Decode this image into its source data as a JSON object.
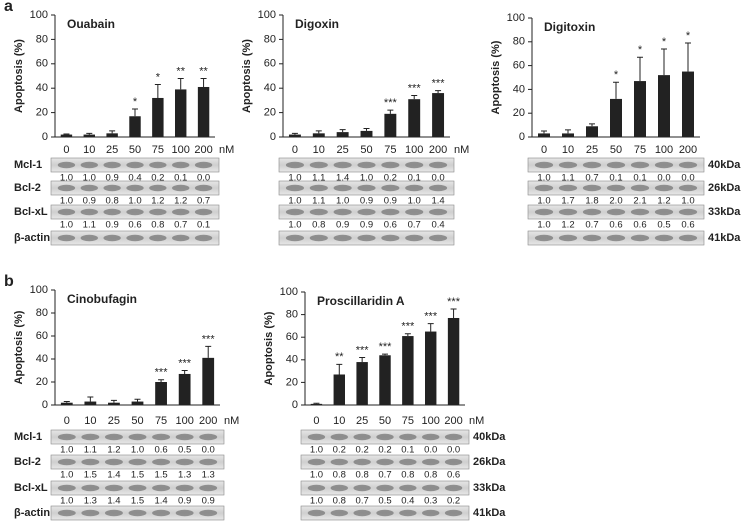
{
  "chart_data": [
    {
      "type": "bar",
      "panel": "a",
      "title": "Ouabain",
      "ylabel": "Apoptosis (%)",
      "xunit": "nM",
      "categories": [
        "0",
        "10",
        "25",
        "50",
        "75",
        "100",
        "200"
      ],
      "values": [
        2,
        2,
        3,
        17,
        32,
        39,
        41
      ],
      "errors": [
        0.5,
        1,
        2,
        6,
        11,
        9,
        7
      ],
      "annotations": [
        null,
        null,
        null,
        "*",
        "*",
        "**",
        "**"
      ],
      "ylim": [
        0,
        100
      ],
      "yticks": [
        0,
        20,
        40,
        60,
        80,
        100
      ],
      "color": "#222222",
      "blot_label_side": "left",
      "blots": [
        {
          "label": "Mcl-1",
          "labels": [
            "1.0",
            "1.0",
            "0.9",
            "0.4",
            "0.2",
            "0.1",
            "0.0"
          ]
        },
        {
          "label": "Bcl-2",
          "labels": [
            "1.0",
            "0.9",
            "0.8",
            "1.0",
            "1.2",
            "1.2",
            "0.7"
          ]
        },
        {
          "label": "Bcl-xL",
          "labels": [
            "1.0",
            "1.1",
            "0.9",
            "0.6",
            "0.8",
            "0.7",
            "0.1"
          ]
        },
        {
          "label": "β-actin"
        }
      ]
    },
    {
      "type": "bar",
      "title": "Digoxin",
      "ylabel": "Apoptosis (%)",
      "xunit": "nM",
      "categories": [
        "0",
        "10",
        "25",
        "50",
        "75",
        "100",
        "200"
      ],
      "values": [
        2,
        3,
        4,
        5,
        19,
        31,
        36
      ],
      "errors": [
        1,
        2,
        2,
        2,
        3,
        3,
        2
      ],
      "annotations": [
        null,
        null,
        null,
        null,
        "***",
        "***",
        "***"
      ],
      "ylim": [
        0,
        100
      ],
      "yticks": [
        0,
        20,
        40,
        60,
        80,
        100
      ],
      "color": "#222222",
      "blots": [
        {
          "labels": [
            "1.0",
            "1.1",
            "1.4",
            "1.0",
            "0.2",
            "0.1",
            "0.0"
          ]
        },
        {
          "labels": [
            "1.0",
            "1.1",
            "1.0",
            "0.9",
            "0.9",
            "1.0",
            "1.4"
          ]
        },
        {
          "labels": [
            "1.0",
            "0.8",
            "0.9",
            "0.9",
            "0.6",
            "0.7",
            "0.4"
          ]
        },
        {}
      ]
    },
    {
      "type": "bar",
      "title": "Digitoxin",
      "ylabel": "Apoptosis (%)",
      "categories": [
        "0",
        "10",
        "25",
        "50",
        "75",
        "100",
        "200"
      ],
      "values": [
        3,
        3,
        9,
        32,
        47,
        52,
        55
      ],
      "errors": [
        2,
        3,
        2,
        14,
        20,
        22,
        24
      ],
      "annotations": [
        null,
        null,
        null,
        "*",
        "*",
        "*",
        "*"
      ],
      "ylim": [
        0,
        100
      ],
      "yticks": [
        0,
        20,
        40,
        60,
        80,
        100
      ],
      "color": "#222222",
      "blot_label_side": "right",
      "blots": [
        {
          "label": "40kDa",
          "labels": [
            "1.0",
            "1.1",
            "0.7",
            "0.1",
            "0.1",
            "0.0",
            "0.0"
          ]
        },
        {
          "label": "26kDa",
          "labels": [
            "1.0",
            "1.7",
            "1.8",
            "2.0",
            "2.1",
            "1.2",
            "1.0"
          ]
        },
        {
          "label": "33kDa",
          "labels": [
            "1.0",
            "1.2",
            "0.7",
            "0.6",
            "0.6",
            "0.5",
            "0.6"
          ]
        },
        {
          "label": "41kDa"
        }
      ]
    },
    {
      "type": "bar",
      "panel": "b",
      "title": "Cinobufagin",
      "ylabel": "Apoptosis (%)",
      "xunit": "nM",
      "categories": [
        "0",
        "10",
        "25",
        "50",
        "75",
        "100",
        "200"
      ],
      "values": [
        2,
        3,
        2,
        3,
        20,
        27,
        41
      ],
      "errors": [
        1,
        4,
        2,
        2,
        2,
        3,
        10
      ],
      "annotations": [
        null,
        null,
        null,
        null,
        "***",
        "***",
        "***"
      ],
      "ylim": [
        0,
        100
      ],
      "yticks": [
        0,
        20,
        40,
        60,
        80,
        100
      ],
      "color": "#222222",
      "blot_label_side": "left",
      "blots": [
        {
          "label": "Mcl-1",
          "labels": [
            "1.0",
            "1.1",
            "1.2",
            "1.0",
            "0.6",
            "0.5",
            "0.0"
          ]
        },
        {
          "label": "Bcl-2",
          "labels": [
            "1.0",
            "1.5",
            "1.4",
            "1.5",
            "1.5",
            "1.3",
            "1.3"
          ]
        },
        {
          "label": "Bcl-xL",
          "labels": [
            "1.0",
            "1.3",
            "1.4",
            "1.5",
            "1.4",
            "0.9",
            "0.9"
          ]
        },
        {
          "label": "β-actin"
        }
      ]
    },
    {
      "type": "bar",
      "title": "Proscillaridin A",
      "ylabel": "Apoptosis (%)",
      "xunit": "nM",
      "categories": [
        "0",
        "10",
        "25",
        "50",
        "75",
        "100",
        "200"
      ],
      "values": [
        1,
        27,
        38,
        44,
        61,
        65,
        77
      ],
      "errors": [
        0.5,
        9,
        4,
        1,
        2,
        7,
        8
      ],
      "annotations": [
        null,
        "**",
        "***",
        "***",
        "***",
        "***",
        "***"
      ],
      "ylim": [
        0,
        100
      ],
      "yticks": [
        0,
        20,
        40,
        60,
        80,
        100
      ],
      "color": "#222222",
      "blot_label_side": "right",
      "blots": [
        {
          "label": "40kDa",
          "labels": [
            "1.0",
            "0.2",
            "0.2",
            "0.2",
            "0.1",
            "0.0",
            "0.0"
          ]
        },
        {
          "label": "26kDa",
          "labels": [
            "1.0",
            "0.8",
            "0.8",
            "0.7",
            "0.8",
            "0.8",
            "0.6"
          ]
        },
        {
          "label": "33kDa",
          "labels": [
            "1.0",
            "0.8",
            "0.7",
            "0.5",
            "0.4",
            "0.3",
            "0.2"
          ]
        },
        {
          "label": "41kDa"
        }
      ]
    }
  ]
}
